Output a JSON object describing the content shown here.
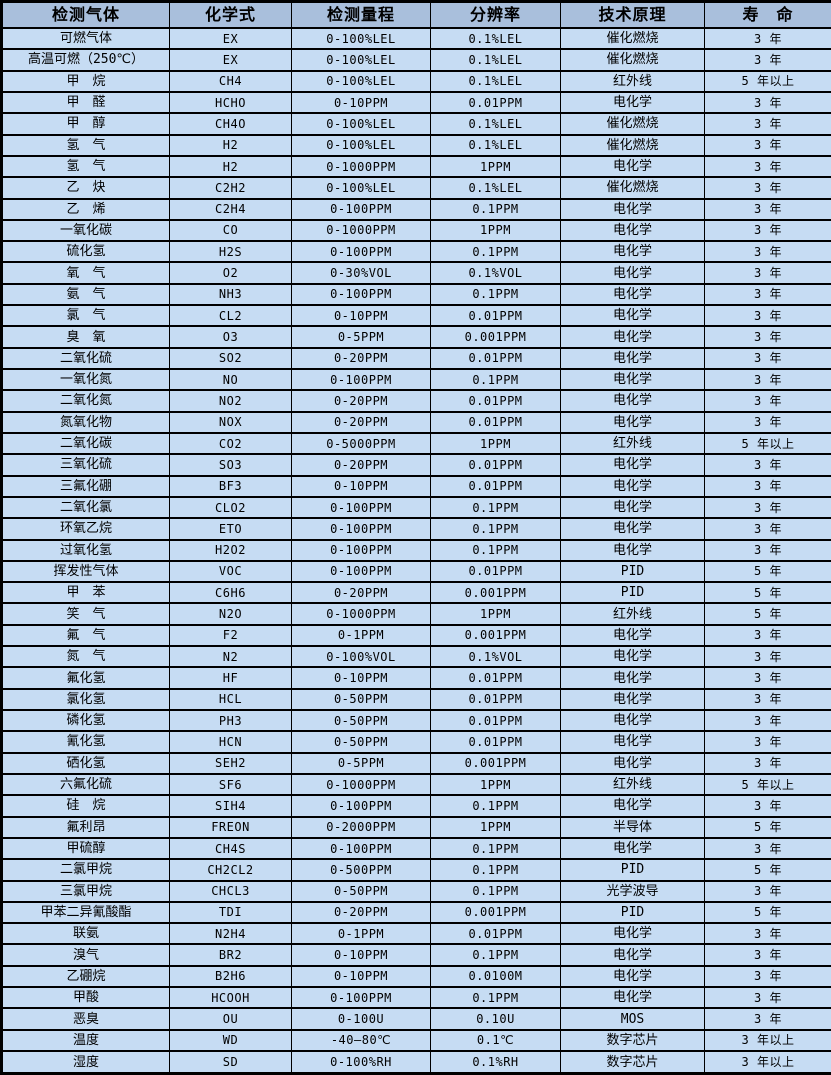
{
  "colors": {
    "header_bg": "#a9bfdc",
    "row_bg": "#c6dcf3",
    "border": "#000000",
    "text": "#000000"
  },
  "table": {
    "headers": [
      "检测气体",
      "化学式",
      "检测量程",
      "分辨率",
      "技术原理",
      "寿　命"
    ],
    "rows": [
      {
        "gas": "可燃气体",
        "formula": "EX",
        "range": "0-100%LEL",
        "resolution": "0.1%LEL",
        "principle": "催化燃烧",
        "lifespan": "3 年"
      },
      {
        "gas": "高温可燃（250℃）",
        "formula": "EX",
        "range": "0-100%LEL",
        "resolution": "0.1%LEL",
        "principle": "催化燃烧",
        "lifespan": "3 年"
      },
      {
        "gas": "甲　烷",
        "formula": "CH4",
        "range": "0-100%LEL",
        "resolution": "0.1%LEL",
        "principle": "红外线",
        "lifespan": "5 年以上"
      },
      {
        "gas": "甲　醛",
        "formula": "HCHO",
        "range": "0-10PPM",
        "resolution": "0.01PPM",
        "principle": "电化学",
        "lifespan": "3 年"
      },
      {
        "gas": "甲　醇",
        "formula": "CH4O",
        "range": "0-100%LEL",
        "resolution": "0.1%LEL",
        "principle": "催化燃烧",
        "lifespan": "3 年"
      },
      {
        "gas": "氢　气",
        "formula": "H2",
        "range": "0-100%LEL",
        "resolution": "0.1%LEL",
        "principle": "催化燃烧",
        "lifespan": "3 年"
      },
      {
        "gas": "氢　气",
        "formula": "H2",
        "range": "0-1000PPM",
        "resolution": "1PPM",
        "principle": "电化学",
        "lifespan": "3 年"
      },
      {
        "gas": "乙　炔",
        "formula": "C2H2",
        "range": "0-100%LEL",
        "resolution": "0.1%LEL",
        "principle": "催化燃烧",
        "lifespan": "3 年"
      },
      {
        "gas": "乙　烯",
        "formula": "C2H4",
        "range": "0-100PPM",
        "resolution": "0.1PPM",
        "principle": "电化学",
        "lifespan": "3 年"
      },
      {
        "gas": "一氧化碳",
        "formula": "CO",
        "range": "0-1000PPM",
        "resolution": "1PPM",
        "principle": "电化学",
        "lifespan": "3 年"
      },
      {
        "gas": "硫化氢",
        "formula": "H2S",
        "range": "0-100PPM",
        "resolution": "0.1PPM",
        "principle": "电化学",
        "lifespan": "3 年"
      },
      {
        "gas": "氧　气",
        "formula": "O2",
        "range": "0-30%VOL",
        "resolution": "0.1%VOL",
        "principle": "电化学",
        "lifespan": "3 年"
      },
      {
        "gas": "氨　气",
        "formula": "NH3",
        "range": "0-100PPM",
        "resolution": "0.1PPM",
        "principle": "电化学",
        "lifespan": "3 年"
      },
      {
        "gas": "氯　气",
        "formula": "CL2",
        "range": "0-10PPM",
        "resolution": "0.01PPM",
        "principle": "电化学",
        "lifespan": "3 年"
      },
      {
        "gas": "臭　氧",
        "formula": "O3",
        "range": "0-5PPM",
        "resolution": "0.001PPM",
        "principle": "电化学",
        "lifespan": "3 年"
      },
      {
        "gas": "二氧化硫",
        "formula": "SO2",
        "range": "0-20PPM",
        "resolution": "0.01PPM",
        "principle": "电化学",
        "lifespan": "3 年"
      },
      {
        "gas": "一氧化氮",
        "formula": "NO",
        "range": "0-100PPM",
        "resolution": "0.1PPM",
        "principle": "电化学",
        "lifespan": "3 年"
      },
      {
        "gas": "二氧化氮",
        "formula": "NO2",
        "range": "0-20PPM",
        "resolution": "0.01PPM",
        "principle": "电化学",
        "lifespan": "3 年"
      },
      {
        "gas": "氮氧化物",
        "formula": "NOX",
        "range": "0-20PPM",
        "resolution": "0.01PPM",
        "principle": "电化学",
        "lifespan": "3 年"
      },
      {
        "gas": "二氧化碳",
        "formula": "CO2",
        "range": "0-5000PPM",
        "resolution": "1PPM",
        "principle": "红外线",
        "lifespan": "5 年以上"
      },
      {
        "gas": "三氧化硫",
        "formula": "SO3",
        "range": "0-20PPM",
        "resolution": "0.01PPM",
        "principle": "电化学",
        "lifespan": "3 年"
      },
      {
        "gas": "三氟化硼",
        "formula": "BF3",
        "range": "0-10PPM",
        "resolution": "0.01PPM",
        "principle": "电化学",
        "lifespan": "3 年"
      },
      {
        "gas": "二氧化氯",
        "formula": "CLO2",
        "range": "0-100PPM",
        "resolution": "0.1PPM",
        "principle": "电化学",
        "lifespan": "3 年"
      },
      {
        "gas": "环氧乙烷",
        "formula": "ETO",
        "range": "0-100PPM",
        "resolution": "0.1PPM",
        "principle": "电化学",
        "lifespan": "3 年"
      },
      {
        "gas": "过氧化氢",
        "formula": "H2O2",
        "range": "0-100PPM",
        "resolution": "0.1PPM",
        "principle": "电化学",
        "lifespan": "3 年"
      },
      {
        "gas": "挥发性气体",
        "formula": "VOC",
        "range": "0-100PPM",
        "resolution": "0.01PPM",
        "principle": "PID",
        "lifespan": "5 年"
      },
      {
        "gas": "甲　苯",
        "formula": "C6H6",
        "range": "0-20PPM",
        "resolution": "0.001PPM",
        "principle": "PID",
        "lifespan": "5 年"
      },
      {
        "gas": "笑　气",
        "formula": "N2O",
        "range": "0-1000PPM",
        "resolution": "1PPM",
        "principle": "红外线",
        "lifespan": "5 年"
      },
      {
        "gas": "氟　气",
        "formula": "F2",
        "range": "0-1PPM",
        "resolution": "0.001PPM",
        "principle": "电化学",
        "lifespan": "3 年"
      },
      {
        "gas": "氮　气",
        "formula": "N2",
        "range": "0-100%VOL",
        "resolution": "0.1%VOL",
        "principle": "电化学",
        "lifespan": "3 年"
      },
      {
        "gas": "氟化氢",
        "formula": "HF",
        "range": "0-10PPM",
        "resolution": "0.01PPM",
        "principle": "电化学",
        "lifespan": "3 年"
      },
      {
        "gas": "氯化氢",
        "formula": "HCL",
        "range": "0-50PPM",
        "resolution": "0.01PPM",
        "principle": "电化学",
        "lifespan": "3 年"
      },
      {
        "gas": "磷化氢",
        "formula": "PH3",
        "range": "0-50PPM",
        "resolution": "0.01PPM",
        "principle": "电化学",
        "lifespan": "3 年"
      },
      {
        "gas": "氰化氢",
        "formula": "HCN",
        "range": "0-50PPM",
        "resolution": "0.01PPM",
        "principle": "电化学",
        "lifespan": "3 年"
      },
      {
        "gas": "硒化氢",
        "formula": "SEH2",
        "range": "0-5PPM",
        "resolution": "0.001PPM",
        "principle": "电化学",
        "lifespan": "3 年"
      },
      {
        "gas": "六氟化硫",
        "formula": "SF6",
        "range": "0-1000PPM",
        "resolution": "1PPM",
        "principle": "红外线",
        "lifespan": "5 年以上"
      },
      {
        "gas": "硅　烷",
        "formula": "SIH4",
        "range": "0-100PPM",
        "resolution": "0.1PPM",
        "principle": "电化学",
        "lifespan": "3 年"
      },
      {
        "gas": "氟利昂",
        "formula": "FREON",
        "range": "0-2000PPM",
        "resolution": "1PPM",
        "principle": "半导体",
        "lifespan": "5 年"
      },
      {
        "gas": "甲硫醇",
        "formula": "CH4S",
        "range": "0-100PPM",
        "resolution": "0.1PPM",
        "principle": "电化学",
        "lifespan": "3 年"
      },
      {
        "gas": "二氯甲烷",
        "formula": "CH2CL2",
        "range": "0-500PPM",
        "resolution": "0.1PPM",
        "principle": "PID",
        "lifespan": "5 年"
      },
      {
        "gas": "三氯甲烷",
        "formula": "CHCL3",
        "range": "0-50PPM",
        "resolution": "0.1PPM",
        "principle": "光学波导",
        "lifespan": "3 年"
      },
      {
        "gas": "甲苯二异氰酸酯",
        "formula": "TDI",
        "range": "0-20PPM",
        "resolution": "0.001PPM",
        "principle": "PID",
        "lifespan": "5 年"
      },
      {
        "gas": "联氨",
        "formula": "N2H4",
        "range": "0-1PPM",
        "resolution": "0.01PPM",
        "principle": "电化学",
        "lifespan": "3 年"
      },
      {
        "gas": "溴气",
        "formula": "BR2",
        "range": "0-10PPM",
        "resolution": "0.1PPM",
        "principle": "电化学",
        "lifespan": "3 年"
      },
      {
        "gas": "乙硼烷",
        "formula": "B2H6",
        "range": "0-10PPM",
        "resolution": "0.0100M",
        "principle": "电化学",
        "lifespan": "3 年"
      },
      {
        "gas": "甲酸",
        "formula": "HCOOH",
        "range": "0-100PPM",
        "resolution": "0.1PPM",
        "principle": "电化学",
        "lifespan": "3 年"
      },
      {
        "gas": "恶臭",
        "formula": "OU",
        "range": "0-100U",
        "resolution": "0.10U",
        "principle": "MOS",
        "lifespan": "3 年"
      },
      {
        "gas": "温度",
        "formula": "WD",
        "range": "-40—80℃",
        "resolution": "0.1℃",
        "principle": "数字芯片",
        "lifespan": "3 年以上"
      },
      {
        "gas": "湿度",
        "formula": "SD",
        "range": "0-100%RH",
        "resolution": "0.1%RH",
        "principle": "数字芯片",
        "lifespan": "3 年以上"
      }
    ]
  }
}
